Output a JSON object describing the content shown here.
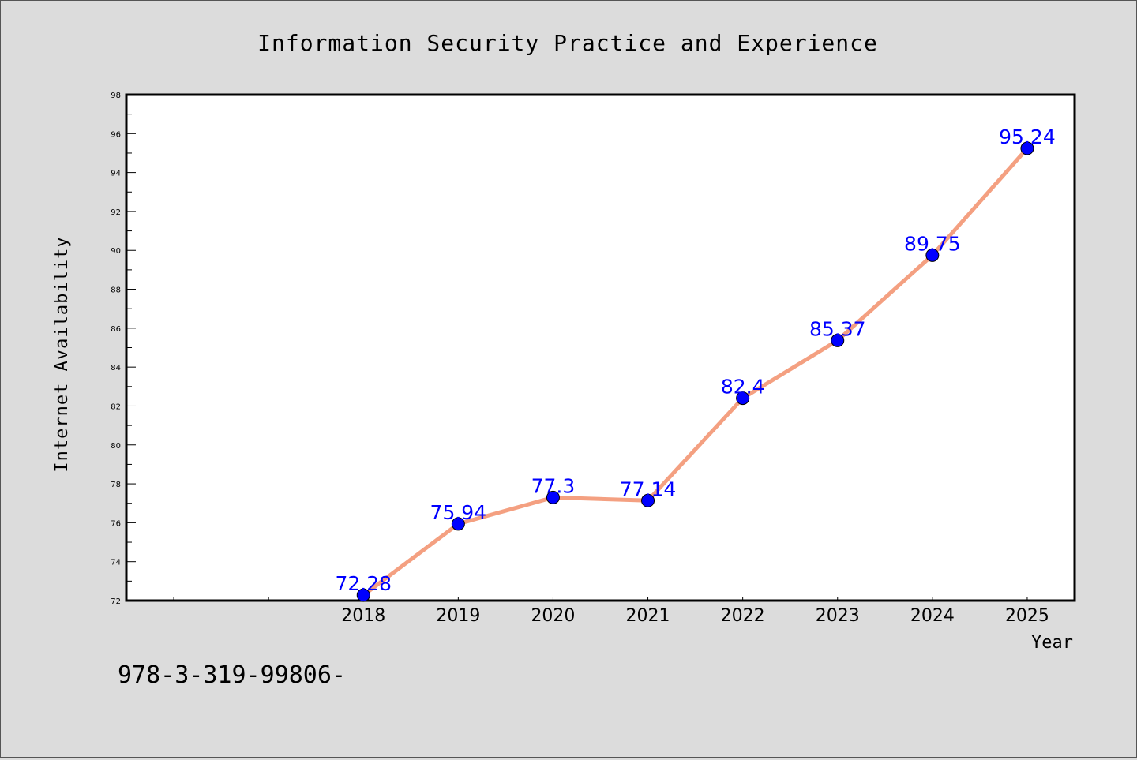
{
  "chart_data": {
    "type": "line",
    "title": "Information Security Practice and Experience",
    "xlabel": "Year",
    "ylabel": "Internet Availability",
    "x": [
      2018,
      2019,
      2020,
      2021,
      2022,
      2023,
      2024,
      2025
    ],
    "categories": [
      "2018",
      "2019",
      "2020",
      "2021",
      "2022",
      "2023",
      "2024",
      "2025"
    ],
    "series": [
      {
        "values": [
          72.28,
          75.94,
          77.3,
          77.14,
          82.4,
          85.37,
          89.75,
          95.24
        ],
        "labels": [
          "72.28",
          "75.94",
          "77.3",
          "77.14",
          "82.4",
          "85.37",
          "89.75",
          "95.24"
        ]
      }
    ],
    "xlim": [
      2015.5,
      2025.5
    ],
    "ylim": [
      72,
      98
    ],
    "yticks": [
      "72",
      "74",
      "76",
      "78",
      "80",
      "82",
      "84",
      "86",
      "88",
      "90",
      "92",
      "94",
      "96",
      "98"
    ],
    "grid": false,
    "line_color": "#f4a081",
    "marker_color": "#0000ff",
    "label_color": "#0000ff",
    "background": "#dcdcdc",
    "plot_background": "#ffffff"
  },
  "footer": "978-3-319-99806-"
}
